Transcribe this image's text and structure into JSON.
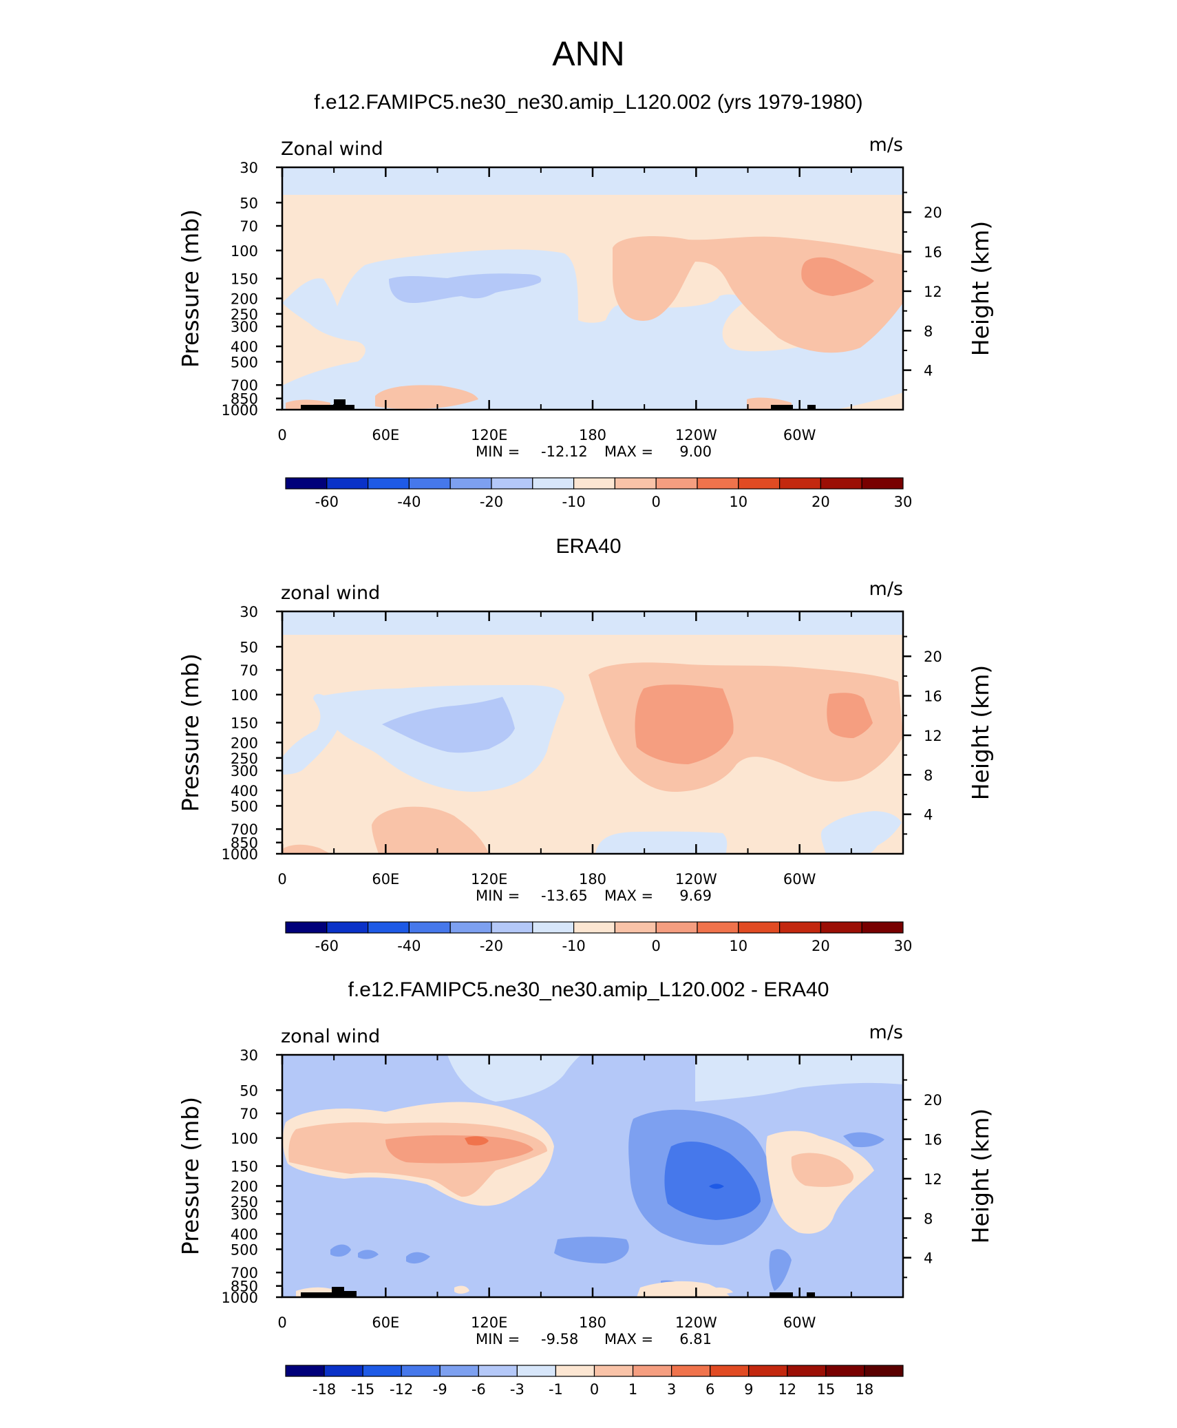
{
  "figure_title": "ANN",
  "chart_data": [
    {
      "type": "heatmap",
      "title": "f.e12.FAMIPC5.ne30_ne30.amip_L120.002 (yrs 1979-1980)",
      "left_string": "Zonal wind",
      "right_string": "m/s",
      "ylabel": "Pressure (mb)",
      "ylabel_right": "Height (km)",
      "x_ticks": [
        "0",
        "60E",
        "120E",
        "180",
        "120W",
        "60W"
      ],
      "y_ticks": [
        "30",
        "50",
        "70",
        "100",
        "150",
        "200",
        "250",
        "300",
        "400",
        "500",
        "700",
        "850",
        "1000"
      ],
      "y2_ticks": [
        "20",
        "16",
        "12",
        "8",
        "4"
      ],
      "min_label": "MIN =",
      "min_value": "-12.12",
      "max_label": "MAX =",
      "max_value": "9.00",
      "colorbar": {
        "labels": [
          "-60",
          "-40",
          "-20",
          "-10",
          "0",
          "10",
          "20",
          "30"
        ],
        "colors": [
          "#00007a",
          "#0a32c8",
          "#1e5ae6",
          "#4678eb",
          "#7da0f0",
          "#b4c8f8",
          "#d7e6fa",
          "#fce6d2",
          "#f9c3a8",
          "#f59e80",
          "#f0734c",
          "#e14b23",
          "#c3280f",
          "#9b0f05",
          "#780000"
        ]
      },
      "fields": {
        "band_top": "#d7e6fa",
        "background": "#fce6d2",
        "neg_regions": [
          "#d7e6fa",
          "#b4c8f8"
        ],
        "pos_regions": [
          "#f9c3a8",
          "#f59e80"
        ]
      }
    },
    {
      "type": "heatmap",
      "title": "ERA40",
      "left_string": "zonal wind",
      "right_string": "m/s",
      "ylabel": "Pressure (mb)",
      "ylabel_right": "Height (km)",
      "x_ticks": [
        "0",
        "60E",
        "120E",
        "180",
        "120W",
        "60W"
      ],
      "y_ticks": [
        "30",
        "50",
        "70",
        "100",
        "150",
        "200",
        "250",
        "300",
        "400",
        "500",
        "700",
        "850",
        "1000"
      ],
      "y2_ticks": [
        "20",
        "16",
        "12",
        "8",
        "4"
      ],
      "min_label": "MIN =",
      "min_value": "-13.65",
      "max_label": "MAX =",
      "max_value": "9.69",
      "colorbar": {
        "labels": [
          "-60",
          "-40",
          "-20",
          "-10",
          "0",
          "10",
          "20",
          "30"
        ],
        "colors": [
          "#00007a",
          "#0a32c8",
          "#1e5ae6",
          "#4678eb",
          "#7da0f0",
          "#b4c8f8",
          "#d7e6fa",
          "#fce6d2",
          "#f9c3a8",
          "#f59e80",
          "#f0734c",
          "#e14b23",
          "#c3280f",
          "#9b0f05",
          "#780000"
        ]
      }
    },
    {
      "type": "heatmap",
      "title": "f.e12.FAMIPC5.ne30_ne30.amip_L120.002 - ERA40",
      "left_string": "zonal wind",
      "right_string": "m/s",
      "ylabel": "Pressure (mb)",
      "ylabel_right": "Height (km)",
      "x_ticks": [
        "0",
        "60E",
        "120E",
        "180",
        "120W",
        "60W"
      ],
      "y_ticks": [
        "30",
        "50",
        "70",
        "100",
        "150",
        "200",
        "250",
        "300",
        "400",
        "500",
        "700",
        "850",
        "1000"
      ],
      "y2_ticks": [
        "20",
        "16",
        "12",
        "8",
        "4"
      ],
      "min_label": "MIN =",
      "min_value": "-9.58",
      "max_label": "MAX =",
      "max_value": "6.81",
      "colorbar": {
        "labels": [
          "-18",
          "-15",
          "-12",
          "-9",
          "-6",
          "-3",
          "-1",
          "0",
          "1",
          "3",
          "6",
          "9",
          "12",
          "15",
          "18"
        ],
        "colors": [
          "#00007a",
          "#0a32c8",
          "#1e5ae6",
          "#4678eb",
          "#7da0f0",
          "#b4c8f8",
          "#d7e6fa",
          "#fce6d2",
          "#f9c3a8",
          "#f59e80",
          "#f0734c",
          "#e14b23",
          "#c3280f",
          "#9b0f05",
          "#780000",
          "#5a0000"
        ]
      }
    }
  ]
}
